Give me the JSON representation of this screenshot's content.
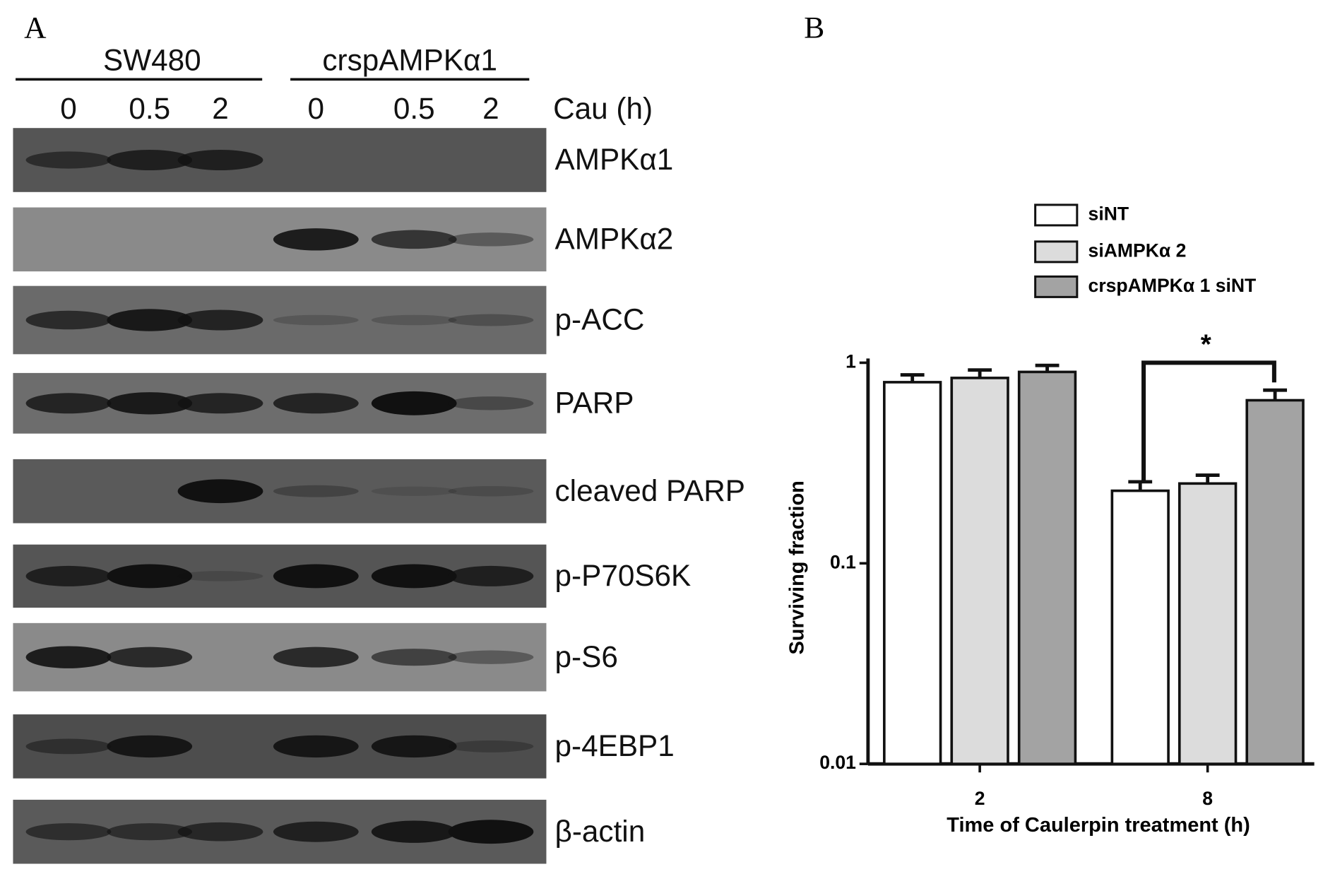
{
  "panel_a": {
    "label": "A",
    "groups": [
      "SW480",
      "crspAMPKα1"
    ],
    "lanes": [
      "0",
      "0.5",
      "2",
      "0",
      "0.5",
      "2"
    ],
    "treatment": "Cau (h)",
    "proteins": [
      "AMPKα1",
      "AMPKα2",
      "p-ACC",
      "PARP",
      "cleaved PARP",
      "p-P70S6K",
      "p-S6",
      "p-4EBP1",
      "β-actin"
    ]
  },
  "chart_data": {
    "type": "bar",
    "panel_label": "B",
    "x_label": "Time of Caulerpin treatment (h)",
    "y_label": "Surviving fraction",
    "categories": [
      "2",
      "8"
    ],
    "log_scale": true,
    "ylim": [
      0.01,
      1
    ],
    "yticks": [
      0.01,
      0.1,
      1
    ],
    "series": [
      {
        "name": "siNT",
        "color": "#ffffff",
        "values": [
          0.8,
          0.23
        ],
        "errors": [
          0.07,
          0.025
        ]
      },
      {
        "name": "siAMPKα 2",
        "color": "#dcdcdc",
        "values": [
          0.84,
          0.25
        ],
        "errors": [
          0.08,
          0.025
        ]
      },
      {
        "name": "crspAMPKα 1 siNT",
        "color": "#a3a3a3",
        "values": [
          0.9,
          0.65
        ],
        "errors": [
          0.07,
          0.08
        ]
      }
    ],
    "annotations": [
      "*"
    ]
  }
}
